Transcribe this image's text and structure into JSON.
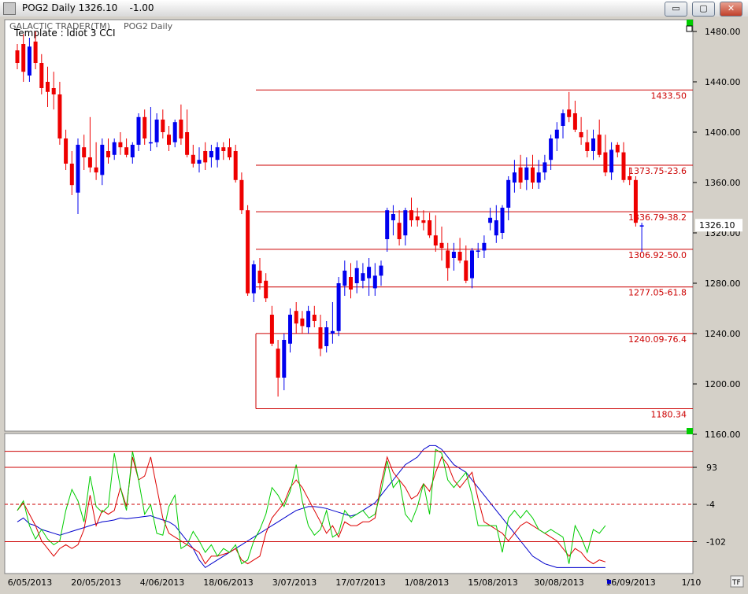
{
  "window": {
    "title": "POG2 Daily 1326.10    -1.00",
    "buttons": {
      "minimize": "▭",
      "maximize": "▢",
      "close": "✕"
    }
  },
  "header": {
    "brand": "GALACTIC TRADER(TM)",
    "symbol": "POG2 Daily",
    "template": "Template : Idiot 3 CCI"
  },
  "price_axis": {
    "ticks": [
      "1480.00",
      "1440.00",
      "1400.00",
      "1360.00",
      "1320.00",
      "1280.00",
      "1240.00",
      "1200.00",
      "1160.00"
    ],
    "current_label": "1326.10"
  },
  "indicator_axis": {
    "ticks": [
      "93",
      "-4",
      "-102"
    ]
  },
  "date_axis": {
    "labels": [
      "6/05/2013",
      "20/05/2013",
      "4/06/2013",
      "18/06/2013",
      "3/07/2013",
      "17/07/2013",
      "1/08/2013",
      "15/08/2013",
      "30/08/2013",
      "16/09/2013",
      "1/10"
    ]
  },
  "fib_levels": [
    {
      "label": "1433.50",
      "price": 1433.5
    },
    {
      "label": "1373.75-23.6",
      "price": 1373.75
    },
    {
      "label": "1336.79-38.2",
      "price": 1336.79
    },
    {
      "label": "1306.92-50.0",
      "price": 1306.92
    },
    {
      "label": "1277.05-61.8",
      "price": 1277.05
    },
    {
      "label": "1240.09-76.4",
      "price": 1240.09
    },
    {
      "label": "1180.34",
      "price": 1180.34
    }
  ],
  "colors": {
    "up": "#0000ee",
    "down": "#ee0000",
    "fib_line": "#cc0000",
    "cci_green": "#00cc00",
    "cci_red": "#dd0000",
    "cci_blue": "#0000cc",
    "background": "#ffffff"
  },
  "tf_button": "TF",
  "chart_data": {
    "type": "candlestick",
    "symbol": "POG2",
    "ylim": [
      1155,
      1490
    ],
    "candles": [
      [
        1465,
        1470,
        1450,
        1455
      ],
      [
        1470,
        1478,
        1440,
        1448
      ],
      [
        1445,
        1475,
        1440,
        1468
      ],
      [
        1472,
        1480,
        1450,
        1455
      ],
      [
        1455,
        1462,
        1430,
        1435
      ],
      [
        1440,
        1452,
        1420,
        1432
      ],
      [
        1435,
        1448,
        1418,
        1430
      ],
      [
        1430,
        1440,
        1390,
        1395
      ],
      [
        1395,
        1402,
        1370,
        1375
      ],
      [
        1375,
        1385,
        1350,
        1358
      ],
      [
        1352,
        1395,
        1335,
        1390
      ],
      [
        1388,
        1398,
        1370,
        1380
      ],
      [
        1380,
        1412,
        1368,
        1372
      ],
      [
        1372,
        1392,
        1362,
        1368
      ],
      [
        1366,
        1395,
        1358,
        1390
      ],
      [
        1385,
        1395,
        1375,
        1380
      ],
      [
        1382,
        1395,
        1378,
        1392
      ],
      [
        1392,
        1400,
        1382,
        1388
      ],
      [
        1388,
        1395,
        1380,
        1382
      ],
      [
        1380,
        1392,
        1375,
        1390
      ],
      [
        1390,
        1415,
        1385,
        1412
      ],
      [
        1412,
        1418,
        1390,
        1395
      ],
      [
        1392,
        1420,
        1385,
        1392
      ],
      [
        1392,
        1415,
        1388,
        1410
      ],
      [
        1410,
        1418,
        1395,
        1400
      ],
      [
        1398,
        1405,
        1385,
        1390
      ],
      [
        1392,
        1410,
        1388,
        1408
      ],
      [
        1410,
        1422,
        1390,
        1395
      ],
      [
        1400,
        1418,
        1380,
        1382
      ],
      [
        1382,
        1390,
        1372,
        1375
      ],
      [
        1375,
        1388,
        1368,
        1378
      ],
      [
        1385,
        1392,
        1370,
        1376
      ],
      [
        1380,
        1390,
        1372,
        1385
      ],
      [
        1378,
        1392,
        1372,
        1388
      ],
      [
        1388,
        1392,
        1378,
        1385
      ],
      [
        1388,
        1395,
        1378,
        1380
      ],
      [
        1385,
        1390,
        1360,
        1362
      ],
      [
        1362,
        1368,
        1335,
        1338
      ],
      [
        1338,
        1342,
        1270,
        1272
      ],
      [
        1272,
        1298,
        1265,
        1295
      ],
      [
        1290,
        1300,
        1275,
        1280
      ],
      [
        1282,
        1288,
        1265,
        1268
      ],
      [
        1255,
        1262,
        1230,
        1232
      ],
      [
        1228,
        1235,
        1190,
        1205
      ],
      [
        1205,
        1240,
        1195,
        1235
      ],
      [
        1232,
        1260,
        1225,
        1255
      ],
      [
        1258,
        1265,
        1240,
        1248
      ],
      [
        1252,
        1258,
        1240,
        1246
      ],
      [
        1245,
        1262,
        1240,
        1258
      ],
      [
        1255,
        1262,
        1245,
        1250
      ],
      [
        1245,
        1255,
        1222,
        1228
      ],
      [
        1230,
        1250,
        1225,
        1245
      ],
      [
        1240,
        1265,
        1232,
        1242
      ],
      [
        1242,
        1285,
        1238,
        1280
      ],
      [
        1278,
        1298,
        1270,
        1290
      ],
      [
        1285,
        1296,
        1268,
        1275
      ],
      [
        1280,
        1298,
        1272,
        1292
      ],
      [
        1282,
        1296,
        1276,
        1288
      ],
      [
        1284,
        1300,
        1270,
        1293
      ],
      [
        1276,
        1296,
        1270,
        1286
      ],
      [
        1286,
        1298,
        1278,
        1294
      ],
      [
        1315,
        1340,
        1305,
        1338
      ],
      [
        1330,
        1342,
        1318,
        1335
      ],
      [
        1328,
        1338,
        1310,
        1315
      ],
      [
        1318,
        1340,
        1310,
        1338
      ],
      [
        1338,
        1348,
        1325,
        1330
      ],
      [
        1333,
        1340,
        1325,
        1330
      ],
      [
        1330,
        1338,
        1322,
        1328
      ],
      [
        1330,
        1336,
        1316,
        1318
      ],
      [
        1318,
        1334,
        1305,
        1310
      ],
      [
        1312,
        1325,
        1298,
        1308
      ],
      [
        1306,
        1312,
        1282,
        1292
      ],
      [
        1300,
        1312,
        1290,
        1305
      ],
      [
        1305,
        1316,
        1296,
        1298
      ],
      [
        1298,
        1310,
        1280,
        1282
      ],
      [
        1284,
        1308,
        1276,
        1306
      ],
      [
        1305,
        1312,
        1300,
        1306
      ],
      [
        1306,
        1318,
        1300,
        1312
      ],
      [
        1328,
        1340,
        1322,
        1332
      ],
      [
        1318,
        1342,
        1312,
        1330
      ],
      [
        1320,
        1342,
        1315,
        1340
      ],
      [
        1340,
        1365,
        1330,
        1362
      ],
      [
        1360,
        1378,
        1352,
        1368
      ],
      [
        1372,
        1382,
        1355,
        1360
      ],
      [
        1362,
        1380,
        1354,
        1372
      ],
      [
        1372,
        1382,
        1355,
        1360
      ],
      [
        1360,
        1378,
        1355,
        1368
      ],
      [
        1368,
        1382,
        1362,
        1376
      ],
      [
        1378,
        1398,
        1370,
        1395
      ],
      [
        1395,
        1408,
        1385,
        1402
      ],
      [
        1405,
        1418,
        1395,
        1415
      ],
      [
        1418,
        1432,
        1408,
        1412
      ],
      [
        1415,
        1425,
        1400,
        1402
      ],
      [
        1400,
        1412,
        1390,
        1396
      ],
      [
        1392,
        1402,
        1380,
        1385
      ],
      [
        1385,
        1402,
        1378,
        1395
      ],
      [
        1398,
        1410,
        1380,
        1382
      ],
      [
        1384,
        1398,
        1365,
        1368
      ],
      [
        1368,
        1392,
        1362,
        1386
      ],
      [
        1390,
        1392,
        1380,
        1384
      ],
      [
        1384,
        1392,
        1360,
        1362
      ],
      [
        1365,
        1372,
        1358,
        1362
      ],
      [
        1362,
        1365,
        1325,
        1328
      ],
      [
        1325,
        1328,
        1305,
        1326
      ]
    ]
  },
  "cci_data": {
    "green": [
      -20,
      5,
      -60,
      -95,
      -70,
      -95,
      -110,
      -100,
      -20,
      35,
      5,
      -50,
      70,
      -10,
      -25,
      -10,
      130,
      40,
      -20,
      135,
      60,
      -30,
      -5,
      -80,
      -85,
      -10,
      20,
      -120,
      -110,
      -75,
      -100,
      -130,
      -110,
      -140,
      -120,
      -130,
      -110,
      -160,
      -150,
      -100,
      -70,
      -30,
      40,
      20,
      -10,
      30,
      100,
      5,
      -60,
      -85,
      -70,
      -20,
      -90,
      -80,
      -20,
      -40,
      -30,
      -20,
      -40,
      -30,
      30,
      110,
      40,
      60,
      -30,
      -50,
      -10,
      50,
      -30,
      140,
      130,
      60,
      40,
      60,
      80,
      20,
      -60,
      -60,
      -60,
      -60,
      -130,
      -40,
      -20,
      -40,
      -20,
      -40,
      -70,
      -80,
      -70,
      -80,
      -90,
      -160,
      -60,
      -90,
      -130,
      -70,
      -80,
      -60
    ],
    "red": [
      -20,
      0,
      -30,
      -60,
      -100,
      -120,
      -140,
      -120,
      -110,
      -120,
      -110,
      -70,
      20,
      -60,
      -20,
      -30,
      -20,
      40,
      -10,
      120,
      60,
      70,
      120,
      40,
      -40,
      -80,
      -90,
      -100,
      -110,
      -120,
      -130,
      -160,
      -140,
      -140,
      -135,
      -130,
      -120,
      -150,
      -160,
      -150,
      -140,
      -80,
      -40,
      -20,
      0,
      40,
      60,
      40,
      10,
      -20,
      -50,
      -80,
      -60,
      -90,
      -50,
      -60,
      -60,
      -50,
      -50,
      -40,
      50,
      120,
      80,
      60,
      40,
      10,
      20,
      50,
      30,
      80,
      120,
      100,
      60,
      40,
      60,
      80,
      10,
      -50,
      -60,
      -70,
      -80,
      -100,
      -80,
      -60,
      -50,
      -60,
      -70,
      -80,
      -90,
      -100,
      -120,
      -140,
      -120,
      -130,
      -150,
      -160,
      -150,
      -155
    ],
    "blue": [
      -50,
      -40,
      -55,
      -60,
      -70,
      -75,
      -80,
      -85,
      -80,
      -75,
      -70,
      -65,
      -60,
      -55,
      -50,
      -48,
      -45,
      -40,
      -42,
      -40,
      -38,
      -36,
      -34,
      -40,
      -45,
      -50,
      -60,
      -80,
      -100,
      -120,
      -150,
      -170,
      -160,
      -150,
      -140,
      -130,
      -120,
      -110,
      -100,
      -90,
      -80,
      -70,
      -60,
      -50,
      -40,
      -30,
      -20,
      -15,
      -10,
      -10,
      -12,
      -15,
      -20,
      -25,
      -30,
      -35,
      -30,
      -20,
      -10,
      0,
      20,
      40,
      60,
      80,
      100,
      110,
      120,
      140,
      150,
      150,
      140,
      120,
      100,
      90,
      80,
      60,
      40,
      20,
      0,
      -20,
      -40,
      -60,
      -80,
      -100,
      -120,
      -140,
      -150,
      -160,
      -165,
      -170,
      -170,
      -170,
      -170,
      -170,
      -170,
      -170,
      -170,
      -170
    ]
  }
}
